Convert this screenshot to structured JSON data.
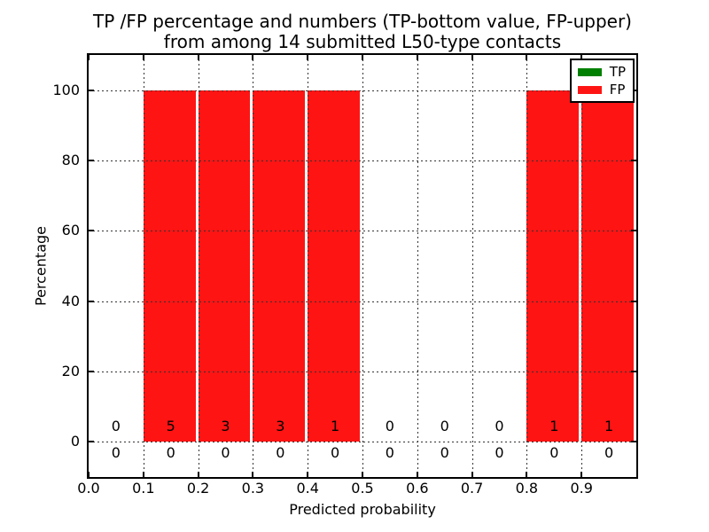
{
  "figure": {
    "title_line1": "TP /FP percentage and numbers (TP-bottom value, FP-upper)",
    "title_line2": "from among 14 submitted L50-type contacts"
  },
  "chart_data": {
    "type": "bar",
    "stacked": true,
    "title": "TP /FP percentage and numbers (TP-bottom value, FP-upper)\nfrom among 14 submitted L50-type contacts",
    "xlabel": "Predicted probability",
    "ylabel": "Percentage",
    "xlim": [
      0.0,
      1.0
    ],
    "ylim": [
      -10,
      110
    ],
    "xticks": [
      0.0,
      0.1,
      0.2,
      0.3,
      0.4,
      0.5,
      0.6,
      0.7,
      0.8,
      0.9
    ],
    "xtick_labels": [
      "0.0",
      "0.1",
      "0.2",
      "0.3",
      "0.4",
      "0.5",
      "0.6",
      "0.7",
      "0.8",
      "0.9"
    ],
    "yticks": [
      0,
      20,
      40,
      60,
      80,
      100
    ],
    "ytick_labels": [
      "0",
      "20",
      "40",
      "60",
      "80",
      "100"
    ],
    "grid": true,
    "grid_style": "dotted",
    "bin_edges": [
      0.0,
      0.1,
      0.2,
      0.3,
      0.4,
      0.5,
      0.6,
      0.7,
      0.8,
      0.9,
      1.0
    ],
    "bar_width": 0.095,
    "series": [
      {
        "name": "TP",
        "color": "#008000",
        "count_row": "bottom",
        "percent": [
          0,
          0,
          0,
          0,
          0,
          0,
          0,
          0,
          0,
          0
        ],
        "counts": [
          0,
          0,
          0,
          0,
          0,
          0,
          0,
          0,
          0,
          0
        ]
      },
      {
        "name": "FP",
        "color": "#ff1414",
        "count_row": "upper",
        "percent": [
          0,
          100,
          100,
          100,
          100,
          0,
          0,
          0,
          100,
          100
        ],
        "counts": [
          0,
          5,
          3,
          3,
          1,
          0,
          0,
          0,
          1,
          1
        ]
      }
    ],
    "legend": {
      "position": "upper right",
      "entries": [
        {
          "label": "TP",
          "color": "#008000"
        },
        {
          "label": "FP",
          "color": "#ff1414"
        }
      ]
    }
  },
  "colors": {
    "background": "#ffffff",
    "spine": "#000000",
    "grid": "#333333",
    "tp": "#008000",
    "fp": "#ff1414"
  }
}
